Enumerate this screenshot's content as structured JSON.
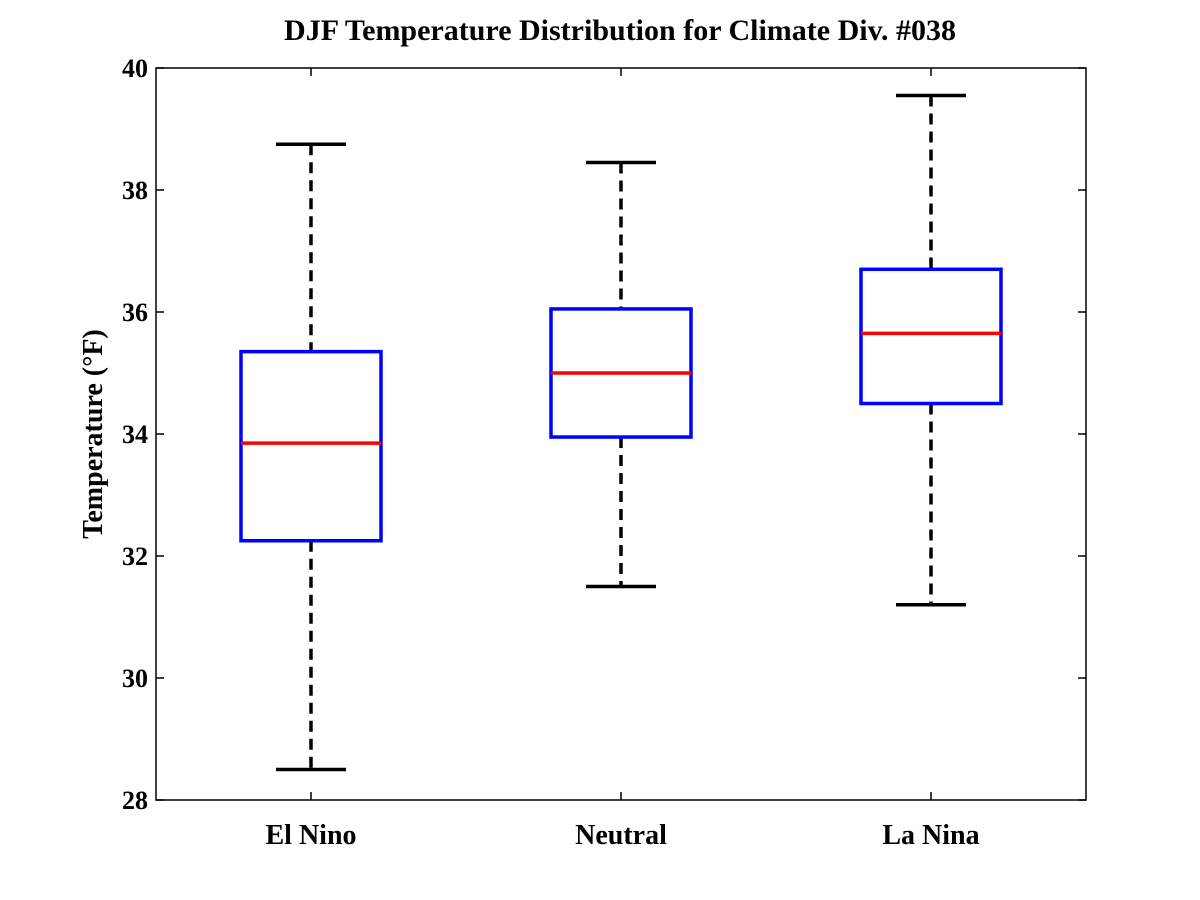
{
  "chart_data": {
    "type": "boxplot",
    "title": "DJF Temperature Distribution for Climate Div. #038",
    "xlabel": "",
    "ylabel": "Temperature (°F)",
    "ylim": [
      28,
      40
    ],
    "yticks": [
      28,
      30,
      32,
      34,
      36,
      38,
      40
    ],
    "grid": false,
    "categories": [
      "El Nino",
      "Neutral",
      "La Nina"
    ],
    "boxes": [
      {
        "category": "El Nino",
        "whisker_low": 28.5,
        "q1": 32.25,
        "median": 33.85,
        "q3": 35.35,
        "whisker_high": 38.75
      },
      {
        "category": "Neutral",
        "whisker_low": 31.5,
        "q1": 33.95,
        "median": 35.0,
        "q3": 36.05,
        "whisker_high": 38.45
      },
      {
        "category": "La Nina",
        "whisker_low": 31.2,
        "q1": 34.5,
        "median": 35.65,
        "q3": 36.7,
        "whisker_high": 39.55
      }
    ],
    "colors": {
      "box": "#0000ff",
      "median": "#ff0000",
      "whisker": "#000000",
      "axis": "#000000"
    }
  }
}
